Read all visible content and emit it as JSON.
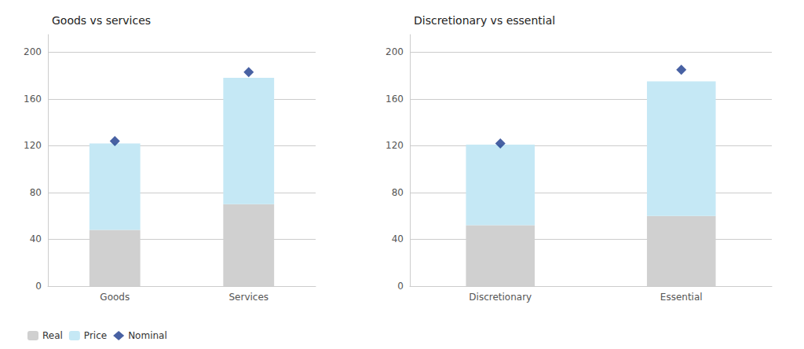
{
  "chart_data": [
    {
      "type": "bar",
      "title": "Goods vs services",
      "categories": [
        "Goods",
        "Services"
      ],
      "series": [
        {
          "name": "Real",
          "color": "#d0d0d0",
          "values": [
            48,
            70
          ]
        },
        {
          "name": "Price",
          "color": "#c5e8f5",
          "values": [
            74,
            108
          ]
        },
        {
          "name": "Nominal",
          "type": "scatter",
          "marker": "diamond",
          "color": "#1a3a8c",
          "values": [
            124,
            183
          ]
        }
      ],
      "stacked": true,
      "ylim": [
        0,
        215
      ],
      "yticks": [
        0,
        40,
        80,
        120,
        160,
        200
      ],
      "grid": true,
      "legend": "lower left"
    },
    {
      "type": "bar",
      "title": "Discretionary vs essential",
      "categories": [
        "Discretionary",
        "Essential"
      ],
      "series": [
        {
          "name": "Real",
          "color": "#d0d0d0",
          "values": [
            52,
            60
          ]
        },
        {
          "name": "Price",
          "color": "#c5e8f5",
          "values": [
            69,
            115
          ]
        },
        {
          "name": "Nominal",
          "type": "scatter",
          "marker": "diamond",
          "color": "#1a3a8c",
          "values": [
            122,
            185
          ]
        }
      ],
      "stacked": true,
      "ylim": [
        0,
        215
      ],
      "yticks": [
        0,
        40,
        80,
        120,
        160,
        200
      ],
      "grid": true
    }
  ]
}
